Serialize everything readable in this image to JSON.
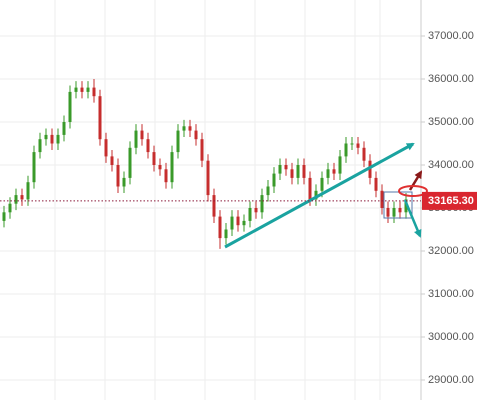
{
  "chart_data": {
    "type": "candlestick",
    "open": [
      32700,
      32900,
      33100,
      33300,
      33200,
      33600,
      34300,
      34600,
      34700,
      34500,
      34700,
      35000,
      35700,
      35800,
      35700,
      35800,
      35600,
      34600,
      34200,
      34000,
      33500,
      33700,
      34400,
      34800,
      34600,
      34300,
      34000,
      33900,
      33600,
      34300,
      34800,
      34900,
      34800,
      34600,
      34100,
      33300,
      32800,
      32300,
      32500,
      32800,
      32600,
      32700,
      33000,
      32900,
      33300,
      33500,
      33800,
      34000,
      33900,
      33700,
      34000,
      33700,
      33200,
      33400,
      33700,
      33900,
      33800,
      34200,
      34500,
      34500,
      34400,
      34100,
      33700,
      33400,
      33000,
      32800,
      33000,
      32900
    ],
    "high": [
      33050,
      33250,
      33450,
      33450,
      33750,
      34450,
      34750,
      34850,
      34850,
      34850,
      35150,
      35850,
      35950,
      35950,
      35950,
      36000,
      35750,
      34750,
      34350,
      34150,
      33850,
      34550,
      34950,
      34950,
      34750,
      34450,
      34150,
      34050,
      34450,
      34950,
      35050,
      35050,
      34950,
      34750,
      34250,
      33450,
      32950,
      32650,
      32950,
      32950,
      32850,
      33150,
      33150,
      33450,
      33650,
      33950,
      34150,
      34150,
      34050,
      34150,
      34150,
      33850,
      33550,
      33850,
      34050,
      34050,
      34350,
      34650,
      34650,
      34650,
      34550,
      34250,
      33850,
      33550,
      33150,
      33150,
      33150,
      33350
    ],
    "low": [
      32550,
      32750,
      32950,
      33050,
      33050,
      33450,
      34150,
      34450,
      34350,
      34350,
      34550,
      34850,
      35550,
      35550,
      35550,
      35450,
      34450,
      34050,
      33850,
      33350,
      33350,
      33550,
      34250,
      34450,
      34150,
      33850,
      33750,
      33450,
      33450,
      34150,
      34650,
      34650,
      34450,
      33950,
      33150,
      32650,
      32050,
      32150,
      32350,
      32450,
      32450,
      32550,
      32750,
      32750,
      33150,
      33350,
      33650,
      33750,
      33550,
      33550,
      33550,
      33050,
      33050,
      33250,
      33550,
      33650,
      33650,
      34050,
      34350,
      34250,
      33950,
      33550,
      33250,
      32850,
      32650,
      32650,
      32750,
      32750
    ],
    "close": [
      32900,
      33100,
      33300,
      33200,
      33600,
      34300,
      34600,
      34700,
      34500,
      34700,
      35000,
      35700,
      35800,
      35700,
      35800,
      35600,
      34600,
      34200,
      34000,
      33500,
      33700,
      34400,
      34800,
      34600,
      34300,
      34000,
      33900,
      33600,
      34300,
      34800,
      34900,
      34800,
      34600,
      34100,
      33300,
      32800,
      32300,
      32500,
      32800,
      32600,
      32700,
      33000,
      32900,
      33300,
      33500,
      33800,
      34000,
      33900,
      33700,
      34000,
      33700,
      33200,
      33400,
      33700,
      33900,
      33800,
      34200,
      34500,
      34500,
      34400,
      34100,
      33700,
      33400,
      33000,
      32800,
      33000,
      32900,
      33200
    ],
    "up_color": "#3a9a2a",
    "down_color": "#c62d2d",
    "ylim": [
      28535,
      37837
    ],
    "yticks": [
      {
        "value": 29000,
        "label": "29000.00"
      },
      {
        "value": 30000,
        "label": "30000.00"
      },
      {
        "value": 31000,
        "label": "31000.00"
      },
      {
        "value": 32000,
        "label": "32000.00"
      },
      {
        "value": 33000,
        "label": "33000.00"
      },
      {
        "value": 34000,
        "label": "34000.00"
      },
      {
        "value": 35000,
        "label": "35000.00"
      },
      {
        "value": 36000,
        "label": "36000.00"
      },
      {
        "value": 37000,
        "label": "37000.00"
      }
    ],
    "last_price": {
      "value": 33165.3,
      "label": "33165.30"
    },
    "grid": true
  }
}
